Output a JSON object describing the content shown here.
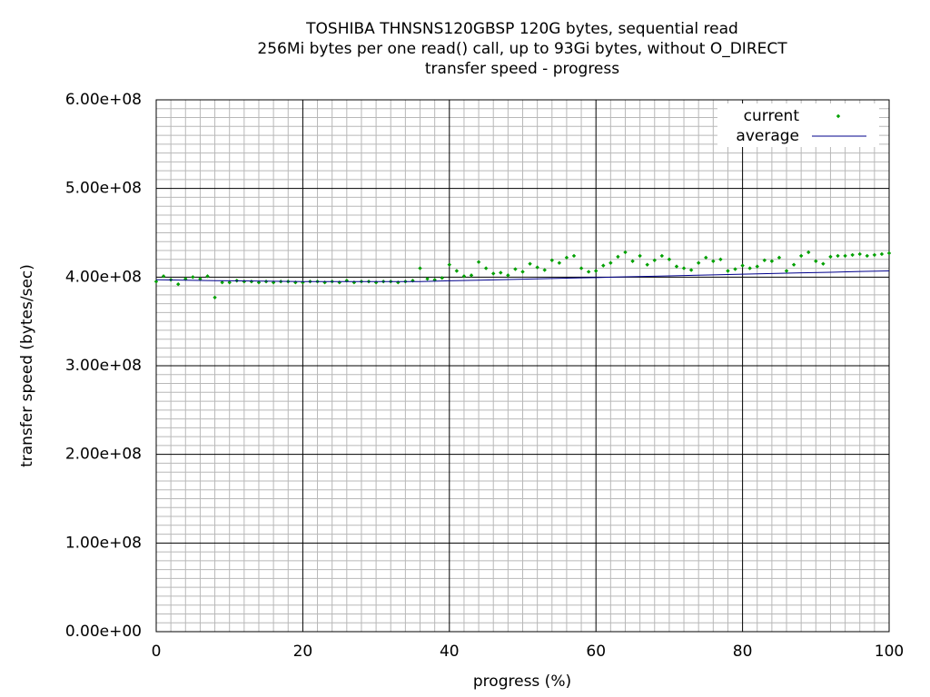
{
  "chart_data": {
    "type": "scatter",
    "title": "TOSHIBA THNSNS120GBSP 120G bytes, sequential read",
    "subtitle": "256Mi bytes per one read() call, up to 93Gi bytes, without O_DIRECT",
    "subtitle2": "transfer speed - progress",
    "x_label": "progress (%)",
    "y_label": "transfer speed (bytes/sec)",
    "xlim": [
      0,
      100
    ],
    "ylim": [
      0,
      600000000
    ],
    "xticks": [
      0,
      20,
      40,
      60,
      80,
      100
    ],
    "yticks": [
      {
        "value": 0,
        "label": "0.00e+00"
      },
      {
        "value": 100000000,
        "label": "1.00e+08"
      },
      {
        "value": 200000000,
        "label": "2.00e+08"
      },
      {
        "value": 300000000,
        "label": "3.00e+08"
      },
      {
        "value": 400000000,
        "label": "4.00e+08"
      },
      {
        "value": 500000000,
        "label": "5.00e+08"
      },
      {
        "value": 600000000,
        "label": "6.00e+08"
      }
    ],
    "grid": true,
    "mxtics": 10,
    "mytics": 10,
    "legend": "top right",
    "series": [
      {
        "name": "current",
        "color": "#00a000",
        "style": "points",
        "x": [
          0,
          1,
          2,
          3,
          4,
          5,
          6,
          7,
          8,
          9,
          10,
          11,
          12,
          13,
          14,
          15,
          16,
          17,
          18,
          19,
          20,
          21,
          22,
          23,
          24,
          25,
          26,
          27,
          28,
          29,
          30,
          31,
          32,
          33,
          34,
          35,
          36,
          37,
          38,
          39,
          40,
          41,
          42,
          43,
          44,
          45,
          46,
          47,
          48,
          49,
          50,
          51,
          52,
          53,
          54,
          55,
          56,
          57,
          58,
          59,
          60,
          61,
          62,
          63,
          64,
          65,
          66,
          67,
          68,
          69,
          70,
          71,
          72,
          73,
          74,
          75,
          76,
          77,
          78,
          79,
          80,
          81,
          82,
          83,
          84,
          85,
          86,
          87,
          88,
          89,
          90,
          91,
          92,
          93,
          94,
          95,
          96,
          97,
          98,
          99,
          100
        ],
        "values": [
          395000000.0,
          401000000.0,
          397000000.0,
          392000000.0,
          398000000.0,
          400000000.0,
          398000000.0,
          401000000.0,
          377000000.0,
          394000000.0,
          394000000.0,
          396000000.0,
          395000000.0,
          395000000.0,
          394000000.0,
          395000000.0,
          394000000.0,
          395000000.0,
          395000000.0,
          394000000.0,
          394000000.0,
          395000000.0,
          395000000.0,
          394000000.0,
          395000000.0,
          394000000.0,
          396000000.0,
          394000000.0,
          395000000.0,
          395000000.0,
          394000000.0,
          395000000.0,
          395000000.0,
          394000000.0,
          395000000.0,
          396000000.0,
          410000000.0,
          398000000.0,
          397000000.0,
          399000000.0,
          414000000.0,
          407000000.0,
          401000000.0,
          402000000.0,
          417000000.0,
          410000000.0,
          404000000.0,
          405000000.0,
          402000000.0,
          409000000.0,
          406000000.0,
          415000000.0,
          411000000.0,
          408000000.0,
          419000000.0,
          416000000.0,
          422000000.0,
          424000000.0,
          410000000.0,
          406000000.0,
          407000000.0,
          413000000.0,
          416000000.0,
          423000000.0,
          428000000.0,
          418000000.0,
          424000000.0,
          414000000.0,
          419000000.0,
          424000000.0,
          420000000.0,
          412000000.0,
          410000000.0,
          408000000.0,
          416000000.0,
          422000000.0,
          418000000.0,
          420000000.0,
          407000000.0,
          409000000.0,
          413000000.0,
          410000000.0,
          412000000.0,
          419000000.0,
          418000000.0,
          422000000.0,
          407000000.0,
          414000000.0,
          424000000.0,
          428000000.0,
          418000000.0,
          415000000.0,
          423000000.0,
          424000000.0,
          424000000.0,
          425000000.0,
          426000000.0,
          424000000.0,
          425000000.0,
          426000000.0,
          427000000.0
        ]
      },
      {
        "name": "average",
        "color": "#00008b",
        "style": "line",
        "x": [
          0,
          8,
          20,
          36,
          40,
          44,
          48,
          52,
          56,
          60,
          64,
          68,
          72,
          76,
          80,
          84,
          88,
          92,
          96,
          100
        ],
        "values": [
          397000000.0,
          396000000.0,
          395000000.0,
          395000000.0,
          395800000.0,
          396500000.0,
          397300000.0,
          398000000.0,
          398800000.0,
          399500000.0,
          400300000.0,
          401000000.0,
          401800000.0,
          402500000.0,
          403300000.0,
          404000000.0,
          404800000.0,
          405500000.0,
          406300000.0,
          407000000.0
        ]
      }
    ]
  }
}
